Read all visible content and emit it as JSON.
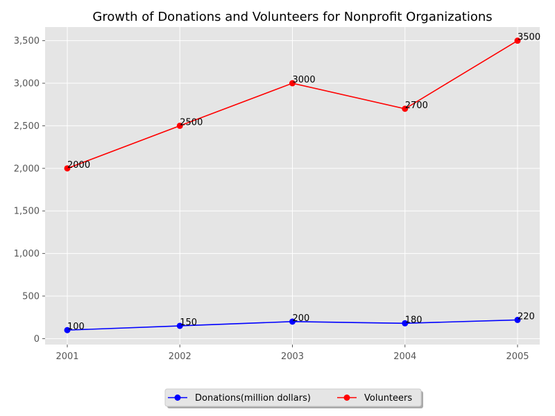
{
  "chart_data": {
    "type": "line",
    "title": "Growth of Donations and Volunteers for Nonprofit Organizations",
    "xlabel": "",
    "ylabel": "",
    "categories": [
      "2001",
      "2002",
      "2003",
      "2004",
      "2005"
    ],
    "ylim": [
      -70,
      3660
    ],
    "yticks": [
      "0",
      "500",
      "1,000",
      "1,500",
      "2,000",
      "2,500",
      "3,000",
      "3,500"
    ],
    "ytick_values": [
      0,
      500,
      1000,
      1500,
      2000,
      2500,
      3000,
      3500
    ],
    "grid": true,
    "legend_position": "bottom-center",
    "series": [
      {
        "name": "Donations(million dollars)",
        "values": [
          100,
          150,
          200,
          180,
          220
        ],
        "color": "#0000ff",
        "labels": [
          "100",
          "150",
          "200",
          "180",
          "220"
        ]
      },
      {
        "name": "Volunteers",
        "values": [
          2000,
          2500,
          3000,
          2700,
          3500
        ],
        "color": "#ff0000",
        "labels": [
          "2000",
          "2500",
          "3000",
          "2700",
          "3500"
        ]
      }
    ],
    "colors": {
      "plot_background": "#e5e5e5",
      "grid": "#ffffff"
    }
  }
}
